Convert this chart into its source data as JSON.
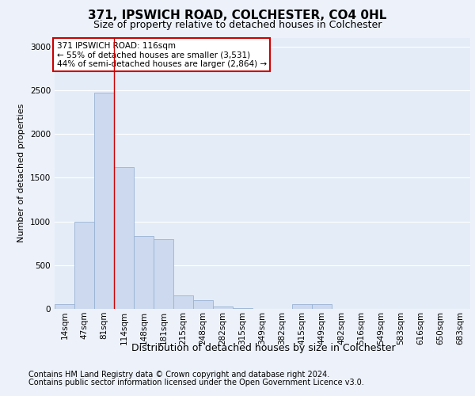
{
  "title1": "371, IPSWICH ROAD, COLCHESTER, CO4 0HL",
  "title2": "Size of property relative to detached houses in Colchester",
  "xlabel": "Distribution of detached houses by size in Colchester",
  "ylabel": "Number of detached properties",
  "categories": [
    "14sqm",
    "47sqm",
    "81sqm",
    "114sqm",
    "148sqm",
    "181sqm",
    "215sqm",
    "248sqm",
    "282sqm",
    "315sqm",
    "349sqm",
    "382sqm",
    "415sqm",
    "449sqm",
    "482sqm",
    "516sqm",
    "549sqm",
    "583sqm",
    "616sqm",
    "650sqm",
    "683sqm"
  ],
  "values": [
    50,
    1000,
    2470,
    1620,
    830,
    800,
    150,
    100,
    30,
    10,
    0,
    0,
    50,
    50,
    0,
    0,
    0,
    0,
    0,
    0,
    0
  ],
  "bar_color": "#ccd9ee",
  "bar_edge_color": "#99b3d4",
  "red_line_x": 2.5,
  "annotation_text": "371 IPSWICH ROAD: 116sqm\n← 55% of detached houses are smaller (3,531)\n44% of semi-detached houses are larger (2,864) →",
  "annotation_box_color": "#ffffff",
  "annotation_box_edge": "#cc0000",
  "footnote1": "Contains HM Land Registry data © Crown copyright and database right 2024.",
  "footnote2": "Contains public sector information licensed under the Open Government Licence v3.0.",
  "ylim": [
    0,
    3100
  ],
  "yticks": [
    0,
    500,
    1000,
    1500,
    2000,
    2500,
    3000
  ],
  "bg_color": "#edf2fa",
  "plot_bg_color": "#e4ecf7",
  "grid_color": "#ffffff",
  "title1_fontsize": 11,
  "title2_fontsize": 9,
  "ylabel_fontsize": 8,
  "xlabel_fontsize": 9,
  "tick_fontsize": 7.5,
  "footnote_fontsize": 7
}
